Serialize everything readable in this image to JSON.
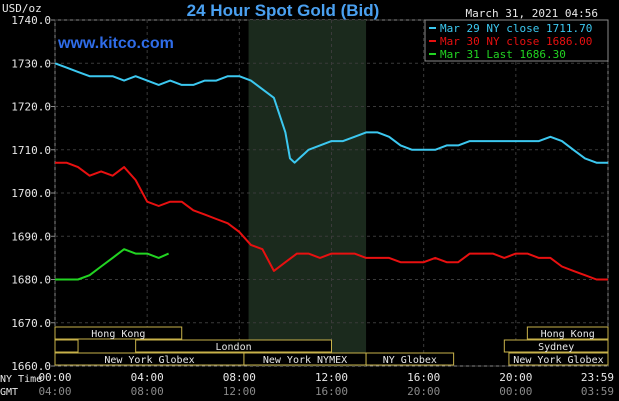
{
  "chart_data": {
    "type": "line",
    "title": "24 Hour Spot Gold (Bid)",
    "brand": "www.kitco.com",
    "timestamp": "March 31, 2021 04:56",
    "ylabel": "USD/oz",
    "ylim": [
      1660,
      1740
    ],
    "y_ticks": [
      "1740.0",
      "1730.0",
      "1720.0",
      "1710.0",
      "1700.0",
      "1690.0",
      "1680.0",
      "1670.0",
      "1660.0"
    ],
    "y_tick_values": [
      1740,
      1730,
      1720,
      1710,
      1700,
      1690,
      1680,
      1670,
      1660
    ],
    "xlim": [
      0,
      24
    ],
    "x_ticks": [
      0,
      4,
      8,
      12,
      16,
      20,
      24
    ],
    "x_tick_labels_ny": [
      "00:00",
      "04:00",
      "08:00",
      "12:00",
      "16:00",
      "20:00",
      "23:59"
    ],
    "x_tick_labels_gmt": [
      "04:00",
      "08:00",
      "12:00",
      "16:00",
      "20:00",
      "00:00",
      "03:59"
    ],
    "x_axis_label_ny": "NY Time",
    "x_axis_label_gmt": "GMT",
    "grid": true,
    "highlight_hours": [
      8.4,
      13.5
    ],
    "legend_position": "top-right",
    "series": [
      {
        "name": "Mar 29 NY close 1711.70",
        "color": "#3cc8f0",
        "x": [
          0,
          0.5,
          1,
          1.5,
          2,
          2.5,
          3,
          3.5,
          4,
          4.5,
          5,
          5.5,
          6,
          6.5,
          7,
          7.5,
          8,
          8.5,
          9,
          9.5,
          10,
          10.2,
          10.4,
          10.6,
          10.8,
          11,
          11.5,
          12,
          12.5,
          13,
          13.5,
          14,
          14.5,
          15,
          15.5,
          16,
          16.5,
          17,
          17.5,
          18,
          18.5,
          19,
          19.5,
          20,
          20.5,
          21,
          21.5,
          22,
          22.5,
          23,
          23.5,
          24
        ],
        "values": [
          1730,
          1729,
          1728,
          1727,
          1727,
          1727,
          1726,
          1727,
          1726,
          1725,
          1726,
          1725,
          1725,
          1726,
          1726,
          1727,
          1727,
          1726,
          1724,
          1722,
          1714,
          1708,
          1707,
          1708,
          1709,
          1710,
          1711,
          1712,
          1712,
          1713,
          1714,
          1714,
          1713,
          1711,
          1710,
          1710,
          1710,
          1711,
          1711,
          1712,
          1712,
          1712,
          1712,
          1712,
          1712,
          1712,
          1713,
          1712,
          1710,
          1708,
          1707,
          1707
        ]
      },
      {
        "name": "Mar 30 NY close 1686.00",
        "color": "#e81010",
        "x": [
          0,
          0.5,
          1,
          1.5,
          2,
          2.5,
          3,
          3.5,
          4,
          4.5,
          5,
          5.5,
          6,
          6.5,
          7,
          7.5,
          8,
          8.5,
          9,
          9.5,
          10,
          10.5,
          11,
          11.5,
          12,
          12.5,
          13,
          13.5,
          14,
          14.5,
          15,
          15.5,
          16,
          16.5,
          17,
          17.5,
          18,
          18.5,
          19,
          19.5,
          20,
          20.5,
          21,
          21.5,
          22,
          22.5,
          23,
          23.5,
          24
        ],
        "values": [
          1707,
          1707,
          1706,
          1704,
          1705,
          1704,
          1706,
          1703,
          1698,
          1697,
          1698,
          1698,
          1696,
          1695,
          1694,
          1693,
          1691,
          1688,
          1687,
          1682,
          1684,
          1686,
          1686,
          1685,
          1686,
          1686,
          1686,
          1685,
          1685,
          1685,
          1684,
          1684,
          1684,
          1685,
          1684,
          1684,
          1686,
          1686,
          1686,
          1685,
          1686,
          1686,
          1685,
          1685,
          1683,
          1682,
          1681,
          1680,
          1680
        ]
      },
      {
        "name": "Mar 31 Last 1686.30",
        "color": "#22d422",
        "x": [
          0,
          0.5,
          1,
          1.5,
          2,
          2.5,
          3,
          3.5,
          4,
          4.5,
          4.93
        ],
        "values": [
          1680,
          1680,
          1680,
          1681,
          1683,
          1685,
          1687,
          1686,
          1686,
          1685,
          1686
        ]
      }
    ],
    "sessions": [
      {
        "label": "Hong Kong",
        "start": 0,
        "end": 5.5,
        "row": 0
      },
      {
        "label": "Hong Kong",
        "start": 20.5,
        "end": 24,
        "row": 0
      },
      {
        "label": "",
        "start": 0,
        "end": 1,
        "row": 1
      },
      {
        "label": "London",
        "start": 3.5,
        "end": 12,
        "row": 1
      },
      {
        "label": "Sydney",
        "start": 19.5,
        "end": 24,
        "row": 1
      },
      {
        "label": "New York Globex",
        "start": 0,
        "end": 8.2,
        "row": 2
      },
      {
        "label": "New York NYMEX",
        "start": 8.2,
        "end": 13.5,
        "row": 2
      },
      {
        "label": "NY Globex",
        "start": 13.5,
        "end": 17.3,
        "row": 2
      },
      {
        "label": "New York Globex",
        "start": 19.7,
        "end": 24,
        "row": 2
      }
    ]
  }
}
